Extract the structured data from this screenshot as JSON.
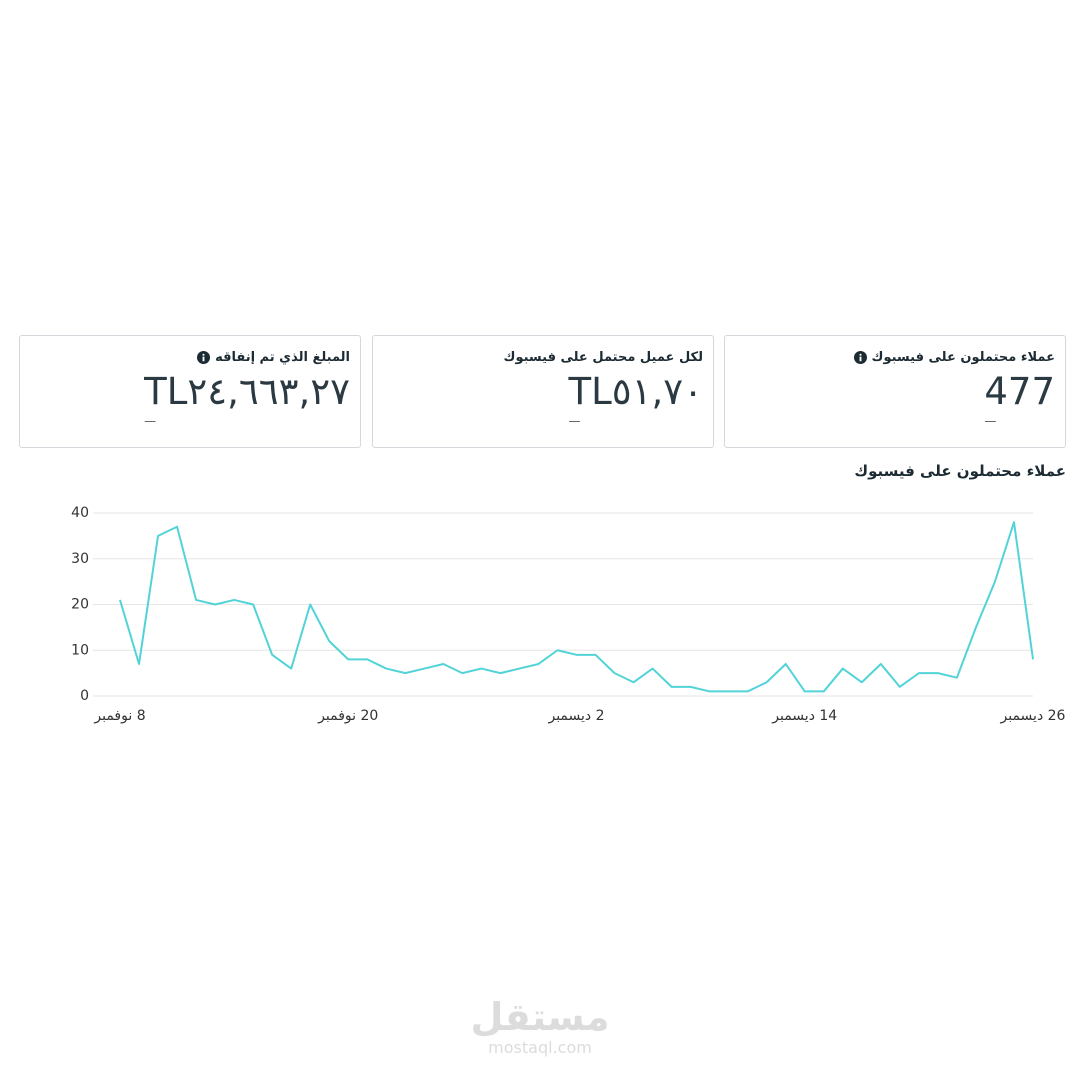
{
  "cards": [
    {
      "title": "عملاء محتملون على فيسبوك",
      "value": "477",
      "delta": "—",
      "info": true
    },
    {
      "title": "لكل عميل محتمل على فيسبوك",
      "value": "TL٥١,٧٠",
      "delta": "—",
      "info": false
    },
    {
      "title": "المبلغ الذي تم إنفاقه",
      "value": "TL٢٤,٦٦٣,٢٧",
      "delta": "—",
      "info": true
    }
  ],
  "chart_data": {
    "type": "line",
    "title": "عملاء محتملون على فيسبوك",
    "categories": [
      "8 نوفمبر",
      null,
      null,
      null,
      null,
      null,
      null,
      null,
      null,
      null,
      null,
      null,
      "20 نوفمبر",
      null,
      null,
      null,
      null,
      null,
      null,
      null,
      null,
      null,
      null,
      null,
      "2 ديسمبر",
      null,
      null,
      null,
      null,
      null,
      null,
      null,
      null,
      null,
      null,
      null,
      "14 ديسمبر",
      null,
      null,
      null,
      null,
      null,
      null,
      null,
      null,
      null,
      null,
      null,
      "26 ديسمبر"
    ],
    "values": [
      21,
      7,
      35,
      37,
      21,
      20,
      21,
      20,
      9,
      6,
      20,
      12,
      8,
      8,
      6,
      5,
      6,
      7,
      5,
      6,
      5,
      6,
      7,
      10,
      9,
      9,
      5,
      3,
      6,
      2,
      2,
      1,
      1,
      1,
      3,
      7,
      1,
      1,
      6,
      3,
      7,
      2,
      5,
      5,
      4,
      15,
      25,
      38,
      8
    ],
    "color": "#52d3d8",
    "ylim": [
      0,
      40
    ],
    "yticks": [
      0,
      10,
      20,
      30,
      40
    ],
    "grid": true
  },
  "watermark": {
    "brand": "مستقل",
    "url": "mostaql.com"
  }
}
